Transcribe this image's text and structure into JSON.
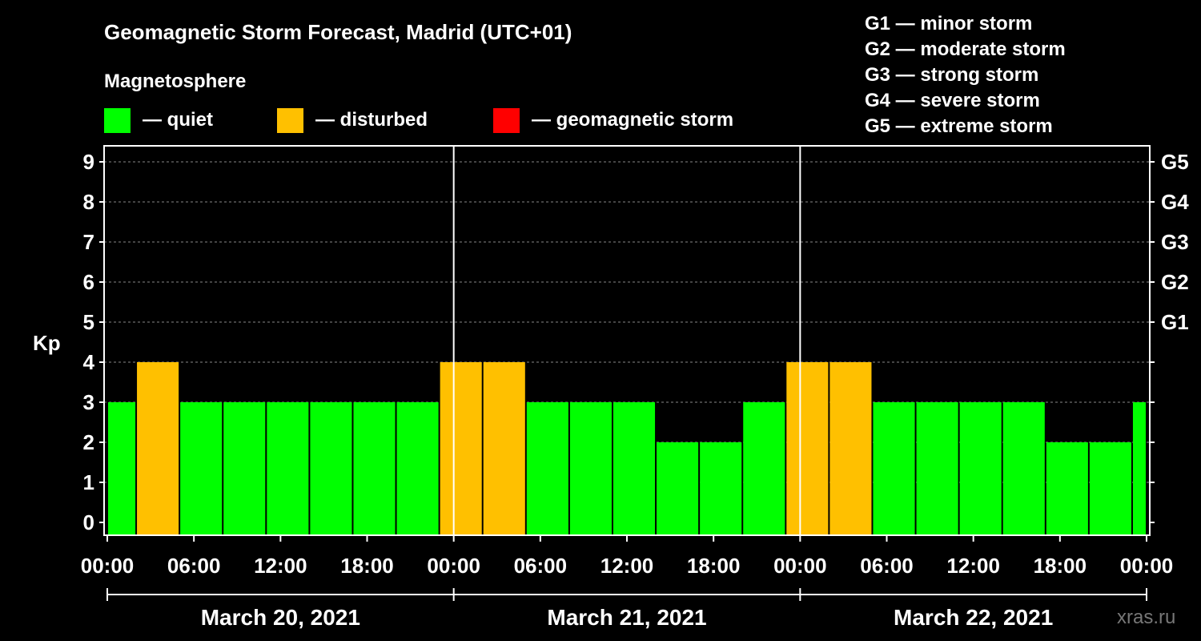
{
  "title": "Geomagnetic Storm Forecast, Madrid (UTC+01)",
  "legend": {
    "heading": "Magnetosphere",
    "items": [
      {
        "label": "— quiet",
        "color": "#00ff00"
      },
      {
        "label": "— disturbed",
        "color": "#ffc000"
      },
      {
        "label": "— geomagnetic storm",
        "color": "#ff0000"
      }
    ]
  },
  "storm_scale": [
    "G1 — minor storm",
    "G2 — moderate storm",
    "G3 — strong storm",
    "G4 — severe storm",
    "G5 — extreme storm"
  ],
  "watermark": "xras.ru",
  "chart_data": {
    "type": "bar",
    "ylabel": "Kp",
    "ylim": [
      0,
      9
    ],
    "yticks": [
      0,
      1,
      2,
      3,
      4,
      5,
      6,
      7,
      8,
      9
    ],
    "right_axis_labels": [
      {
        "kp": 5,
        "label": "G1"
      },
      {
        "kp": 6,
        "label": "G2"
      },
      {
        "kp": 7,
        "label": "G3"
      },
      {
        "kp": 8,
        "label": "G4"
      },
      {
        "kp": 9,
        "label": "G5"
      }
    ],
    "x_tick_labels": [
      "00:00",
      "06:00",
      "12:00",
      "18:00",
      "00:00",
      "06:00",
      "12:00",
      "18:00",
      "00:00",
      "06:00",
      "12:00",
      "18:00",
      "00:00"
    ],
    "days": [
      "March 20, 2021",
      "March 21, 2021",
      "March 22, 2021"
    ],
    "interval_hours": 3,
    "start_hour": -1,
    "values": [
      3,
      4,
      3,
      3,
      3,
      3,
      3,
      3,
      4,
      4,
      3,
      3,
      3,
      2,
      2,
      3,
      4,
      4,
      3,
      3,
      3,
      3,
      2,
      2,
      3
    ],
    "grid": true,
    "thresholds": {
      "quiet_max": 3,
      "disturbed_max": 4
    }
  }
}
